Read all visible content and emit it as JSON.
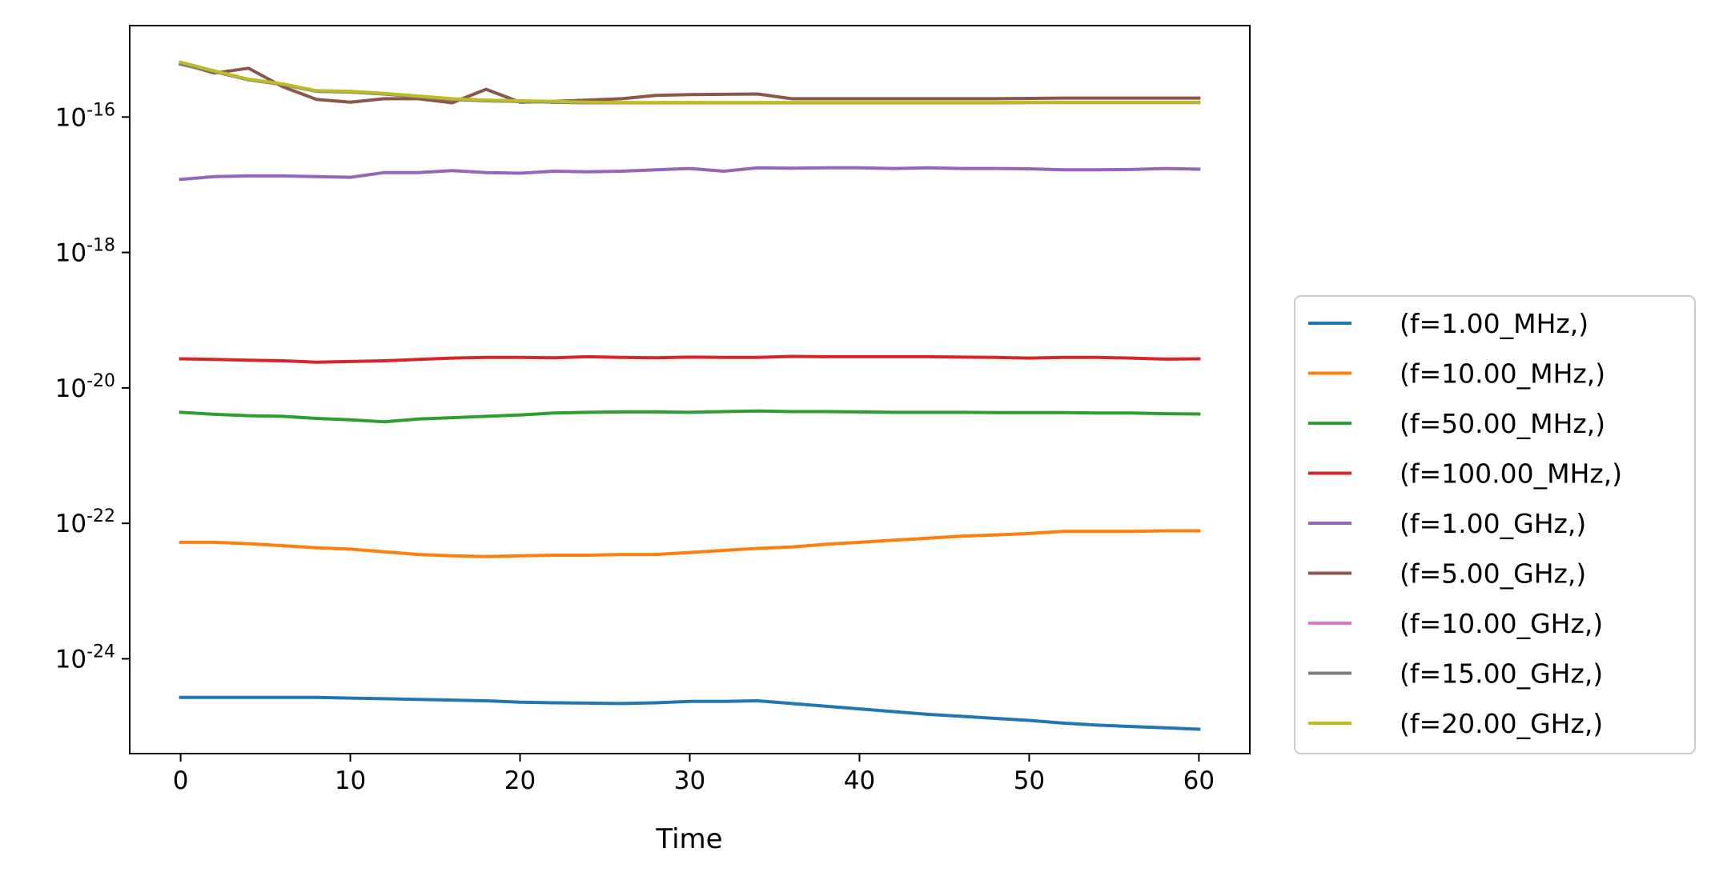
{
  "chart_data": {
    "type": "line",
    "title": "",
    "xlabel": "Time",
    "ylabel": "",
    "xscale": "linear",
    "yscale": "log",
    "xlim": [
      -3,
      63
    ],
    "ylim_exponent": [
      -25.4,
      -14.65
    ],
    "x_ticks": [
      0,
      10,
      20,
      30,
      40,
      50,
      60
    ],
    "y_ticks": [
      {
        "base": "10",
        "exp": "-16",
        "value": -16
      },
      {
        "base": "10",
        "exp": "-18",
        "value": -18
      },
      {
        "base": "10",
        "exp": "-20",
        "value": -20
      },
      {
        "base": "10",
        "exp": "-22",
        "value": -22
      },
      {
        "base": "10",
        "exp": "-24",
        "value": -24
      }
    ],
    "grid": false,
    "legend_position": "lower-right outside plot",
    "x": [
      0,
      2,
      4,
      6,
      8,
      10,
      12,
      14,
      16,
      18,
      20,
      22,
      24,
      26,
      28,
      30,
      32,
      34,
      36,
      38,
      40,
      42,
      44,
      46,
      48,
      50,
      52,
      54,
      56,
      58,
      60
    ],
    "series": [
      {
        "name": "(f=1.00_MHz,)",
        "color": "#1f77b4",
        "log10_values": [
          -24.57,
          -24.57,
          -24.57,
          -24.57,
          -24.57,
          -24.58,
          -24.59,
          -24.6,
          -24.61,
          -24.62,
          -24.64,
          -24.65,
          -24.655,
          -24.66,
          -24.65,
          -24.63,
          -24.63,
          -24.62,
          -24.66,
          -24.7,
          -24.74,
          -24.78,
          -24.82,
          -24.85,
          -24.88,
          -24.91,
          -24.95,
          -24.98,
          -25.0,
          -25.02,
          -25.04
        ]
      },
      {
        "name": "(f=10.00_MHz,)",
        "color": "#ff7f0e",
        "log10_values": [
          -22.28,
          -22.28,
          -22.3,
          -22.33,
          -22.36,
          -22.38,
          -22.42,
          -22.46,
          -22.48,
          -22.49,
          -22.48,
          -22.47,
          -22.47,
          -22.46,
          -22.46,
          -22.43,
          -22.4,
          -22.37,
          -22.35,
          -22.31,
          -22.28,
          -22.25,
          -22.22,
          -22.19,
          -22.17,
          -22.15,
          -22.12,
          -22.12,
          -22.12,
          -22.11,
          -22.11
        ]
      },
      {
        "name": "(f=50.00_MHz,)",
        "color": "#2ca02c",
        "log10_values": [
          -20.36,
          -20.39,
          -20.41,
          -20.42,
          -20.45,
          -20.47,
          -20.5,
          -20.46,
          -20.44,
          -20.42,
          -20.4,
          -20.37,
          -20.36,
          -20.355,
          -20.355,
          -20.36,
          -20.35,
          -20.34,
          -20.35,
          -20.35,
          -20.355,
          -20.36,
          -20.36,
          -20.36,
          -20.365,
          -20.365,
          -20.365,
          -20.37,
          -20.37,
          -20.38,
          -20.385
        ]
      },
      {
        "name": "(f=100.00_MHz,)",
        "color": "#d62728",
        "log10_values": [
          -19.57,
          -19.58,
          -19.59,
          -19.6,
          -19.62,
          -19.61,
          -19.6,
          -19.58,
          -19.56,
          -19.55,
          -19.55,
          -19.555,
          -19.54,
          -19.55,
          -19.555,
          -19.545,
          -19.55,
          -19.55,
          -19.535,
          -19.54,
          -19.54,
          -19.54,
          -19.54,
          -19.545,
          -19.55,
          -19.56,
          -19.55,
          -19.55,
          -19.56,
          -19.575,
          -19.57
        ]
      },
      {
        "name": "(f=1.00_GHz,)",
        "color": "#9467bd",
        "log10_values": [
          -16.92,
          -16.88,
          -16.87,
          -16.87,
          -16.88,
          -16.89,
          -16.82,
          -16.82,
          -16.79,
          -16.82,
          -16.83,
          -16.8,
          -16.81,
          -16.8,
          -16.78,
          -16.76,
          -16.8,
          -16.75,
          -16.755,
          -16.75,
          -16.75,
          -16.76,
          -16.75,
          -16.76,
          -16.76,
          -16.765,
          -16.78,
          -16.78,
          -16.775,
          -16.76,
          -16.77
        ]
      },
      {
        "name": "(f=5.00_GHz,)",
        "color": "#8c564b",
        "log10_values": [
          -15.21,
          -15.35,
          -15.28,
          -15.55,
          -15.74,
          -15.78,
          -15.73,
          -15.73,
          -15.79,
          -15.59,
          -15.78,
          -15.77,
          -15.75,
          -15.73,
          -15.68,
          -15.67,
          -15.665,
          -15.66,
          -15.73,
          -15.73,
          -15.73,
          -15.73,
          -15.73,
          -15.73,
          -15.73,
          -15.725,
          -15.72,
          -15.72,
          -15.72,
          -15.72,
          -15.72
        ]
      },
      {
        "name": "(f=10.00_GHz,)",
        "color": "#e377c2",
        "log10_values": [
          -15.22,
          -15.33,
          -15.45,
          -15.52,
          -15.62,
          -15.63,
          -15.66,
          -15.7,
          -15.74,
          -15.76,
          -15.77,
          -15.78,
          -15.79,
          -15.79,
          -15.79,
          -15.79,
          -15.79,
          -15.79,
          -15.79,
          -15.79,
          -15.79,
          -15.79,
          -15.79,
          -15.79,
          -15.79,
          -15.785,
          -15.785,
          -15.785,
          -15.785,
          -15.785,
          -15.785
        ]
      },
      {
        "name": "(f=15.00_GHz,)",
        "color": "#7f7f7f",
        "log10_values": [
          -15.22,
          -15.33,
          -15.45,
          -15.52,
          -15.62,
          -15.63,
          -15.66,
          -15.7,
          -15.74,
          -15.76,
          -15.77,
          -15.78,
          -15.79,
          -15.79,
          -15.79,
          -15.79,
          -15.79,
          -15.79,
          -15.79,
          -15.79,
          -15.79,
          -15.79,
          -15.79,
          -15.79,
          -15.79,
          -15.785,
          -15.785,
          -15.785,
          -15.785,
          -15.785,
          -15.785
        ]
      },
      {
        "name": "(f=20.00_GHz,)",
        "color": "#bcbd22",
        "log10_values": [
          -15.19,
          -15.32,
          -15.44,
          -15.51,
          -15.61,
          -15.62,
          -15.65,
          -15.69,
          -15.73,
          -15.75,
          -15.76,
          -15.77,
          -15.78,
          -15.785,
          -15.785,
          -15.785,
          -15.785,
          -15.785,
          -15.785,
          -15.785,
          -15.785,
          -15.785,
          -15.785,
          -15.785,
          -15.785,
          -15.78,
          -15.78,
          -15.78,
          -15.78,
          -15.78,
          -15.78
        ]
      }
    ]
  }
}
